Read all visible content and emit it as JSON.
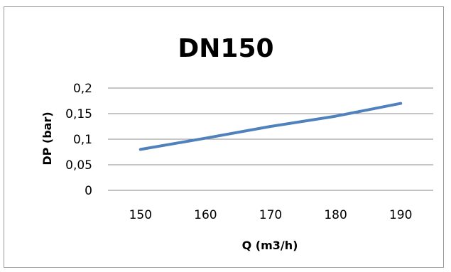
{
  "chart_data": {
    "type": "line",
    "title": "DN150",
    "xlabel": "Q (m3/h)",
    "ylabel": "DP (bar)",
    "x": [
      150,
      160,
      170,
      180,
      190
    ],
    "x_tick_labels": [
      "150",
      "160",
      "170",
      "180",
      "190"
    ],
    "y_tick_labels": [
      "0",
      "0,05",
      "0,1",
      "0,15",
      "0,2"
    ],
    "ylim": [
      0,
      0.2
    ],
    "y_ticks": [
      0,
      0.05,
      0.1,
      0.15,
      0.2
    ],
    "grid": "horizontal",
    "legend": "none",
    "series": [
      {
        "values": [
          0.08,
          0.102,
          0.125,
          0.145,
          0.17
        ],
        "color": "#4f81bd"
      }
    ]
  }
}
